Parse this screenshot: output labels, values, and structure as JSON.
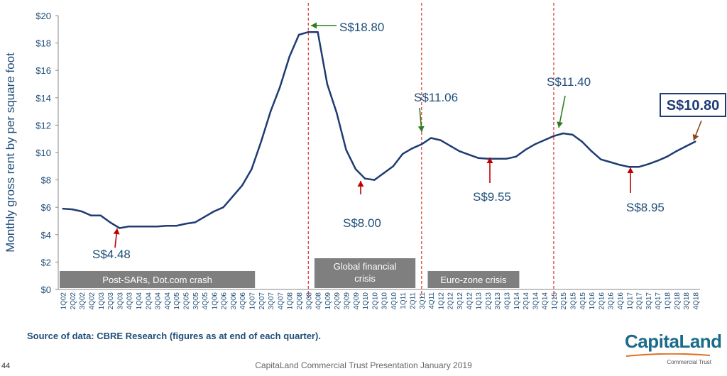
{
  "chart_data": {
    "type": "line",
    "ylabel": "Monthly gross rent by per square foot",
    "ylim": [
      0,
      20
    ],
    "yticks": [
      "$0",
      "$2",
      "$4",
      "$6",
      "$8",
      "$10",
      "$12",
      "$14",
      "$16",
      "$18",
      "$20"
    ],
    "categories": [
      "1Q02",
      "2Q02",
      "3Q02",
      "4Q02",
      "1Q03",
      "2Q03",
      "3Q03",
      "4Q03",
      "1Q04",
      "2Q04",
      "3Q04",
      "4Q04",
      "1Q05",
      "2Q05",
      "3Q05",
      "4Q05",
      "1Q06",
      "2Q06",
      "3Q06",
      "4Q06",
      "1Q07",
      "2Q07",
      "3Q07",
      "4Q07",
      "1Q08",
      "2Q08",
      "3Q08",
      "4Q08",
      "1Q09",
      "2Q09",
      "3Q09",
      "4Q09",
      "1Q10",
      "2Q10",
      "3Q10",
      "4Q10",
      "1Q11",
      "2Q11",
      "3Q11",
      "4Q11",
      "1Q12",
      "2Q12",
      "3Q12",
      "4Q12",
      "1Q13",
      "2Q13",
      "3Q13",
      "4Q13",
      "1Q14",
      "2Q14",
      "3Q14",
      "4Q14",
      "1Q15",
      "2Q15",
      "3Q15",
      "4Q15",
      "1Q16",
      "2Q16",
      "3Q16",
      "4Q16",
      "1Q17",
      "2Q17",
      "3Q17",
      "4Q17",
      "1Q18",
      "2Q18",
      "3Q18",
      "4Q18"
    ],
    "series": [
      {
        "values": [
          5.9,
          5.85,
          5.7,
          5.4,
          5.4,
          4.9,
          4.48,
          4.6,
          4.6,
          4.6,
          4.6,
          4.65,
          4.65,
          4.8,
          4.9,
          5.3,
          5.7,
          6.0,
          6.8,
          7.6,
          8.8,
          10.8,
          13.0,
          14.8,
          17.0,
          18.6,
          18.8,
          18.8,
          15.0,
          12.9,
          10.2,
          8.8,
          8.1,
          8.0,
          8.5,
          9.0,
          9.9,
          10.3,
          10.6,
          11.06,
          10.9,
          10.5,
          10.1,
          9.85,
          9.6,
          9.55,
          9.55,
          9.55,
          9.7,
          10.2,
          10.6,
          10.9,
          11.2,
          11.4,
          11.3,
          10.8,
          10.1,
          9.5,
          9.3,
          9.1,
          8.95,
          8.95,
          9.15,
          9.4,
          9.7,
          10.1,
          10.45,
          10.8
        ]
      }
    ],
    "annotations": [
      {
        "text": "S$4.48",
        "x": "3Q03",
        "value": 4.48,
        "color": "#c00000"
      },
      {
        "text": "S$18.80",
        "x": "4Q08",
        "value": 18.8,
        "color": "#2e7d1e"
      },
      {
        "text": "S$8.00",
        "x": "2Q10",
        "value": 8.0,
        "color": "#c00000"
      },
      {
        "text": "S$11.06",
        "x": "4Q11",
        "value": 11.06,
        "color": "#2e7d1e"
      },
      {
        "text": "S$9.55",
        "x": "3Q13",
        "value": 9.55,
        "color": "#c00000"
      },
      {
        "text": "S$11.40",
        "x": "2Q15",
        "value": 11.4,
        "color": "#2e7d1e"
      },
      {
        "text": "S$8.95",
        "x": "2Q17",
        "value": 8.95,
        "color": "#c00000"
      },
      {
        "text": "S$10.80",
        "x": "4Q18",
        "value": 10.8,
        "color": "#8b4513",
        "boxed": true
      }
    ],
    "vlines": [
      "3Q08",
      "3Q11",
      "1Q15"
    ],
    "periods": [
      {
        "label": "Post-SARs, Dot.com crash",
        "from": "1Q02",
        "to": "1Q07"
      },
      {
        "label": "Global financial crisis",
        "from": "4Q08",
        "to": "2Q11"
      },
      {
        "label": "Euro-zone crisis",
        "from": "4Q11",
        "to": "1Q14"
      }
    ],
    "colors": {
      "line": "#1f3b73",
      "axis": "#888888",
      "text": "#1f4e79",
      "vline": "#e03030",
      "period_box": "#7f7f7f"
    }
  },
  "footer": {
    "source": "Source of data: CBRE Research (figures as at end of each quarter).",
    "presentation": "CapitaLand Commercial Trust Presentation January 2019",
    "page_number": "44"
  },
  "logo": {
    "name": "CapitaLand",
    "sub": "Commercial Trust"
  }
}
